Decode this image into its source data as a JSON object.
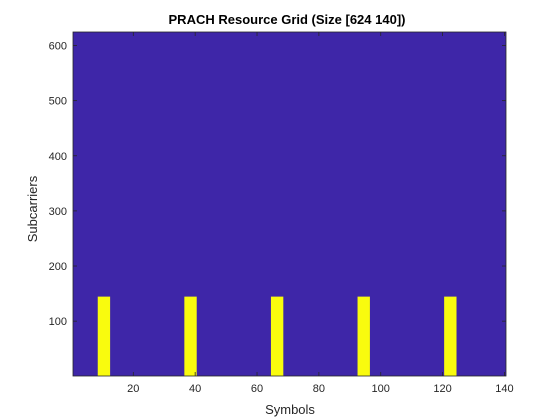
{
  "chart_data": {
    "type": "heatmap",
    "title": "PRACH Resource Grid (Size [624 140])",
    "xlabel": "Symbols",
    "ylabel": "Subcarriers",
    "xlim": [
      0.5,
      140.5
    ],
    "ylim": [
      0.5,
      624.5
    ],
    "xticks": [
      20,
      40,
      60,
      80,
      100,
      120,
      140
    ],
    "yticks": [
      100,
      200,
      300,
      400,
      500,
      600
    ],
    "background_value": 0,
    "colors": {
      "background": "#3e26a8",
      "active": "#f9fb0e",
      "axis": "#262626"
    },
    "active_regions": [
      {
        "x": [
          9,
          12
        ],
        "y": [
          1,
          144
        ]
      },
      {
        "x": [
          37,
          40
        ],
        "y": [
          1,
          144
        ]
      },
      {
        "x": [
          65,
          68
        ],
        "y": [
          1,
          144
        ]
      },
      {
        "x": [
          93,
          96
        ],
        "y": [
          1,
          144
        ]
      },
      {
        "x": [
          121,
          124
        ],
        "y": [
          1,
          144
        ]
      }
    ]
  }
}
